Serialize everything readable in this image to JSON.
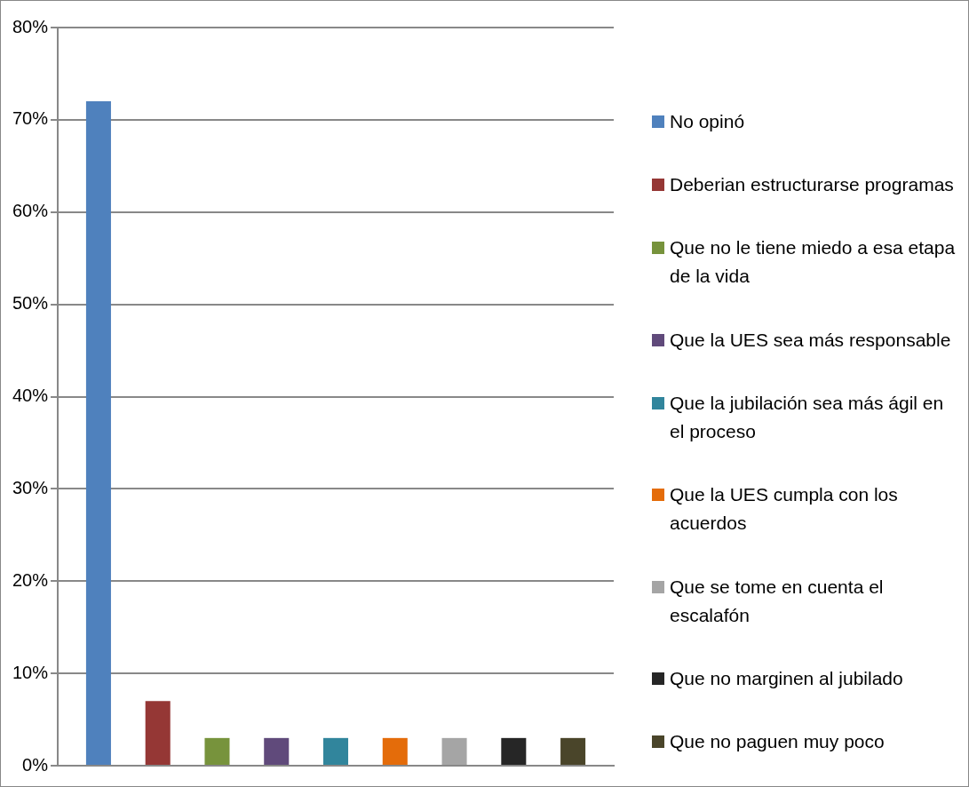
{
  "chart_data": {
    "type": "bar",
    "categories": [
      null
    ],
    "series": [
      {
        "name": "No opinó",
        "color": "#4f81bd",
        "values": [
          72
        ]
      },
      {
        "name": "Deberian estructurarse programas",
        "color": "#953735",
        "values": [
          7
        ]
      },
      {
        "name": "Que no le tiene miedo a esa etapa de la vida",
        "color": "#77933c",
        "values": [
          3
        ]
      },
      {
        "name": "Que la UES sea más responsable",
        "color": "#604a7b",
        "values": [
          3
        ]
      },
      {
        "name": "Que la jubilación sea más ágil en el proceso",
        "color": "#31859c",
        "values": [
          3
        ]
      },
      {
        "name": "Que la UES cumpla con los acuerdos",
        "color": "#e46c0a",
        "values": [
          3
        ]
      },
      {
        "name": "Que se tome en cuenta el escalafón",
        "color": "#a5a5a5",
        "values": [
          3
        ]
      },
      {
        "name": "Que no marginen al jubilado",
        "color": "#262626",
        "values": [
          3
        ]
      },
      {
        "name": "Que no paguen muy poco",
        "color": "#4a452a",
        "values": [
          3
        ]
      }
    ],
    "ylim": [
      0,
      80
    ],
    "yticks": [
      {
        "value": 0,
        "label": "0%"
      },
      {
        "value": 10,
        "label": "10%"
      },
      {
        "value": 20,
        "label": "20%"
      },
      {
        "value": 30,
        "label": "30%"
      },
      {
        "value": 40,
        "label": "40%"
      },
      {
        "value": 50,
        "label": "50%"
      },
      {
        "value": 60,
        "label": "60%"
      },
      {
        "value": 70,
        "label": "70%"
      },
      {
        "value": 80,
        "label": "80%"
      }
    ],
    "grid": "y",
    "legend": "right"
  }
}
